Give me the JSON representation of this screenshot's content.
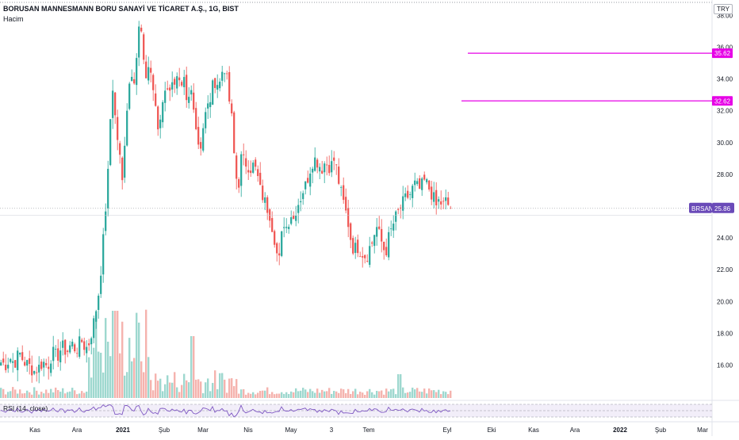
{
  "header": {
    "title": "BORUSAN MANNESMANN BORU SANAYİ VE TİCARET A.Ş., 1G, BIST",
    "volume_label": "Hacim",
    "currency": "TRY"
  },
  "rsi": {
    "label": "RSI (14, close)"
  },
  "colors": {
    "up": "#26a69a",
    "down": "#ef5350",
    "vol_up": "#9ed8cf",
    "vol_down": "#f5b3ae",
    "lines": "#e600e6",
    "rsi": "#7e57c2",
    "badge": "#6a4ab8"
  },
  "chart_data": {
    "type": "candlestick",
    "price_axis": {
      "ticks": [
        16,
        18,
        20,
        22,
        24,
        26,
        28,
        30,
        32,
        34,
        36,
        38
      ],
      "bottom_tick_label": "16.00"
    },
    "time_axis": {
      "labels": [
        "Kas",
        "Ara",
        "2021",
        "Şub",
        "Mar",
        "Nis",
        "May",
        "3",
        "Tem",
        "Eyl",
        "Eki",
        "Kas",
        "Ara",
        "2022",
        "Şub",
        "Mar"
      ]
    },
    "horizontal_lines": [
      {
        "label": "35.62",
        "value": 35.62
      },
      {
        "label": "32.62",
        "value": 32.62
      }
    ],
    "last_price": {
      "symbol": "BRSAN",
      "label": "25.86",
      "value": 25.86
    },
    "ohlc_keypoints": [
      [
        0,
        16.2
      ],
      [
        8,
        16.0
      ],
      [
        12,
        16.5
      ],
      [
        18,
        16.1
      ],
      [
        24,
        16.8
      ],
      [
        30,
        16.2
      ],
      [
        36,
        16.0
      ],
      [
        42,
        15.6
      ],
      [
        48,
        15.8
      ],
      [
        54,
        16.2
      ],
      [
        60,
        15.9
      ],
      [
        66,
        16.8
      ],
      [
        72,
        16.5
      ],
      [
        78,
        17.2
      ],
      [
        84,
        16.8
      ],
      [
        90,
        17.4
      ],
      [
        96,
        16.9
      ],
      [
        102,
        17.6
      ],
      [
        108,
        17.0
      ],
      [
        112,
        17.4
      ],
      [
        116,
        18.2
      ],
      [
        120,
        19.2
      ],
      [
        124,
        20.5
      ],
      [
        128,
        22.5
      ],
      [
        132,
        25.2
      ],
      [
        136,
        28.0
      ],
      [
        139,
        31.5
      ],
      [
        142,
        33.5
      ],
      [
        146,
        31.0
      ],
      [
        150,
        29.5
      ],
      [
        154,
        27.5
      ],
      [
        158,
        31.0
      ],
      [
        162,
        33.5
      ],
      [
        166,
        34.5
      ],
      [
        170,
        34.0
      ],
      [
        174,
        36.8
      ],
      [
        177,
        37.8
      ],
      [
        180,
        35.0
      ],
      [
        184,
        34.2
      ],
      [
        188,
        35.0
      ],
      [
        192,
        33.8
      ],
      [
        196,
        32.0
      ],
      [
        200,
        30.5
      ],
      [
        204,
        32.5
      ],
      [
        208,
        33.5
      ],
      [
        212,
        33.0
      ],
      [
        216,
        34.2
      ],
      [
        220,
        33.4
      ],
      [
        224,
        34.0
      ],
      [
        228,
        33.0
      ],
      [
        232,
        33.8
      ],
      [
        236,
        32.0
      ],
      [
        240,
        33.5
      ],
      [
        244,
        32.5
      ],
      [
        248,
        30.5
      ],
      [
        252,
        29.5
      ],
      [
        256,
        31.0
      ],
      [
        260,
        32.0
      ],
      [
        264,
        32.5
      ],
      [
        268,
        33.5
      ],
      [
        272,
        34.0
      ],
      [
        276,
        33.5
      ],
      [
        280,
        34.5
      ],
      [
        284,
        34.8
      ],
      [
        288,
        33.0
      ],
      [
        292,
        31.5
      ],
      [
        296,
        28.5
      ],
      [
        300,
        27.0
      ],
      [
        304,
        29.0
      ],
      [
        308,
        28.8
      ],
      [
        312,
        28.6
      ],
      [
        316,
        28.4
      ],
      [
        320,
        28.6
      ],
      [
        324,
        28.0
      ],
      [
        328,
        27.0
      ],
      [
        332,
        26.5
      ],
      [
        336,
        26.0
      ],
      [
        340,
        25.5
      ],
      [
        344,
        24.5
      ],
      [
        348,
        23.5
      ],
      [
        351,
        22.0
      ],
      [
        354,
        23.8
      ],
      [
        358,
        25.0
      ],
      [
        362,
        24.6
      ],
      [
        366,
        25.6
      ],
      [
        370,
        25.2
      ],
      [
        374,
        26.0
      ],
      [
        378,
        26.4
      ],
      [
        382,
        27.0
      ],
      [
        386,
        27.4
      ],
      [
        390,
        28.2
      ],
      [
        394,
        28.8
      ],
      [
        398,
        29.0
      ],
      [
        402,
        28.6
      ],
      [
        406,
        28.4
      ],
      [
        410,
        28.8
      ],
      [
        414,
        28.5
      ],
      [
        418,
        28.6
      ],
      [
        422,
        29.0
      ],
      [
        426,
        27.8
      ],
      [
        430,
        26.8
      ],
      [
        434,
        26.0
      ],
      [
        438,
        25.2
      ],
      [
        442,
        24.0
      ],
      [
        446,
        23.2
      ],
      [
        450,
        23.5
      ],
      [
        454,
        23.2
      ],
      [
        458,
        23.0
      ],
      [
        462,
        22.8
      ],
      [
        466,
        23.4
      ],
      [
        470,
        23.8
      ],
      [
        474,
        24.8
      ],
      [
        478,
        24.2
      ],
      [
        482,
        23.6
      ],
      [
        486,
        23.0
      ],
      [
        490,
        24.0
      ],
      [
        494,
        24.6
      ],
      [
        498,
        25.2
      ],
      [
        502,
        25.6
      ],
      [
        506,
        26.0
      ],
      [
        510,
        26.4
      ],
      [
        514,
        26.6
      ],
      [
        518,
        26.8
      ],
      [
        522,
        27.4
      ],
      [
        526,
        27.2
      ],
      [
        530,
        27.0
      ],
      [
        534,
        27.6
      ],
      [
        538,
        27.4
      ],
      [
        542,
        27.0
      ],
      [
        546,
        26.6
      ],
      [
        550,
        26.0
      ],
      [
        554,
        26.4
      ],
      [
        558,
        26.0
      ],
      [
        562,
        26.3
      ],
      [
        566,
        26.0
      ],
      [
        570,
        25.86
      ]
    ],
    "rsi_level_lines": [
      70,
      50,
      30
    ]
  }
}
